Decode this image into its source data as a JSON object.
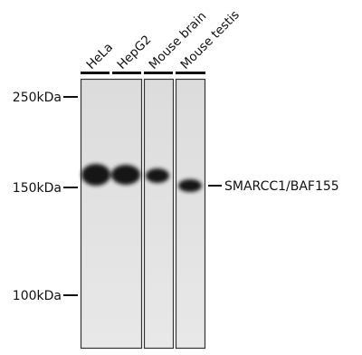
{
  "lanes": [
    "HeLa",
    "HepG2",
    "Mouse brain",
    "Mouse testis"
  ],
  "markers": [
    "250kDa",
    "150kDa",
    "100kDa"
  ],
  "band_label": "SMARCC1/BAF155"
}
